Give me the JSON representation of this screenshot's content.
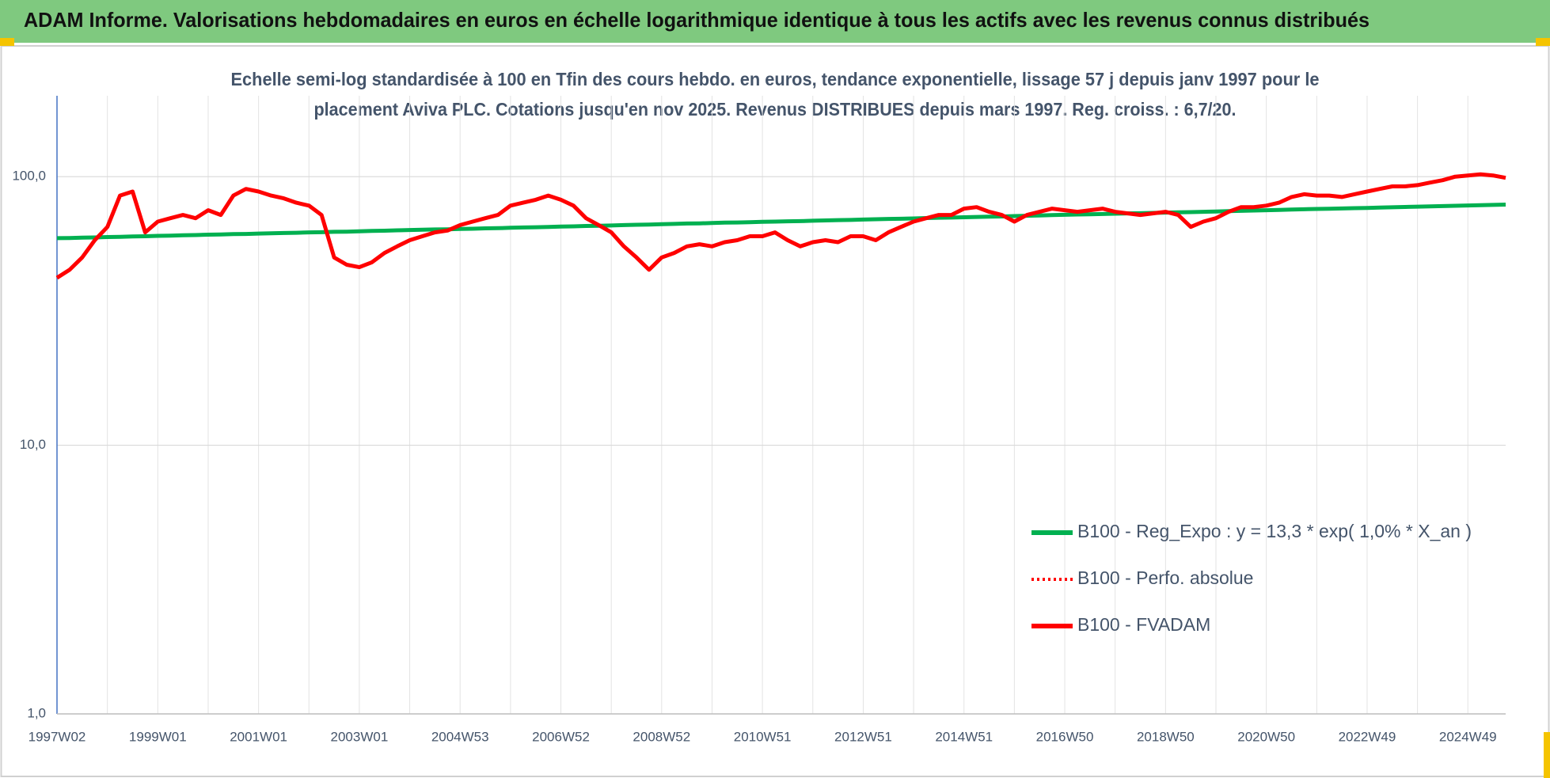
{
  "header": {
    "title": "ADAM Informe. Valorisations hebdomadaires en euros en échelle logarithmique identique à tous les actifs avec les revenus connus distribués"
  },
  "chart_data": {
    "type": "line",
    "subtitle": [
      "Echelle semi-log standardisée à 100 en Tfin des cours hebdo. en euros, tendance exponentielle, lissage 57 j depuis janv 1997 pour le",
      "placement Aviva PLC. Cotations jusqu'en nov 2025.  Revenus DISTRIBUES depuis mars 1997. Reg. croiss. : 6,7/20."
    ],
    "categories": [
      "1997W02",
      null,
      null,
      null,
      null,
      null,
      null,
      null,
      "1999W01",
      null,
      null,
      null,
      null,
      null,
      null,
      null,
      "2001W01",
      null,
      null,
      null,
      null,
      null,
      null,
      null,
      "2003W01",
      null,
      null,
      null,
      null,
      null,
      null,
      null,
      "2004W53",
      null,
      null,
      null,
      null,
      null,
      null,
      null,
      "2006W52",
      null,
      null,
      null,
      null,
      null,
      null,
      null,
      "2008W52",
      null,
      null,
      null,
      null,
      null,
      null,
      null,
      "2010W51",
      null,
      null,
      null,
      null,
      null,
      null,
      null,
      "2012W51",
      null,
      null,
      null,
      null,
      null,
      null,
      null,
      "2014W51",
      null,
      null,
      null,
      null,
      null,
      null,
      null,
      "2016W50",
      null,
      null,
      null,
      null,
      null,
      null,
      null,
      "2018W50",
      null,
      null,
      null,
      null,
      null,
      null,
      null,
      "2020W50",
      null,
      null,
      null,
      null,
      null,
      null,
      null,
      "2022W49",
      null,
      null,
      null,
      null,
      null,
      null,
      null,
      "2024W49",
      null,
      null,
      null
    ],
    "series": [
      {
        "name": "B100 - Reg_Expo : y = 13,3 * exp( 1,0% *  X_an )",
        "color": "#00b050",
        "dash": "solid",
        "values": [
          59.0,
          59.1,
          59.3,
          59.4,
          59.6,
          59.7,
          59.9,
          60.0,
          60.2,
          60.3,
          60.5,
          60.6,
          60.8,
          60.9,
          61.1,
          61.2,
          61.4,
          61.5,
          61.7,
          61.8,
          62.0,
          62.1,
          62.3,
          62.4,
          62.6,
          62.8,
          62.9,
          63.1,
          63.3,
          63.4,
          63.6,
          63.7,
          63.9,
          64.0,
          64.2,
          64.3,
          64.5,
          64.7,
          64.8,
          65.0,
          65.2,
          65.3,
          65.5,
          65.6,
          65.8,
          66.0,
          66.2,
          66.3,
          66.5,
          66.7,
          66.9,
          67.0,
          67.2,
          67.4,
          67.5,
          67.7,
          67.9,
          68.0,
          68.2,
          68.3,
          68.5,
          68.7,
          68.9,
          69.0,
          69.2,
          69.4,
          69.6,
          69.7,
          69.9,
          70.1,
          70.3,
          70.4,
          70.6,
          70.8,
          71.0,
          71.1,
          71.3,
          71.5,
          71.7,
          71.9,
          72.1,
          72.3,
          72.4,
          72.6,
          72.8,
          73.0,
          73.1,
          73.3,
          73.5,
          73.7,
          73.8,
          74.0,
          74.2,
          74.4,
          74.6,
          74.8,
          75.0,
          75.2,
          75.4,
          75.6,
          75.8,
          75.9,
          76.1,
          76.3,
          76.5,
          76.7,
          76.9,
          77.1,
          77.3,
          77.5,
          77.7,
          77.9,
          78.1,
          78.3,
          78.5,
          78.7
        ]
      },
      {
        "name": "B100 - Perfo. absolue",
        "color": "#ff0000",
        "dash": "dotted",
        "values": [
          42,
          45,
          50,
          58,
          65,
          85,
          88,
          62,
          68,
          70,
          72,
          70,
          75,
          72,
          85,
          90,
          88,
          85,
          83,
          80,
          78,
          72,
          50,
          47,
          46,
          48,
          52,
          55,
          58,
          60,
          62,
          63,
          66,
          68,
          70,
          72,
          78,
          80,
          82,
          85,
          82,
          78,
          70,
          66,
          62,
          55,
          50,
          45,
          50,
          52,
          55,
          56,
          55,
          57,
          58,
          60,
          60,
          62,
          58,
          55,
          57,
          58,
          57,
          60,
          60,
          58,
          62,
          65,
          68,
          70,
          72,
          72,
          76,
          77,
          74,
          72,
          68,
          72,
          74,
          76,
          75,
          74,
          75,
          76,
          74,
          73,
          72,
          73,
          74,
          72,
          65,
          68,
          70,
          74,
          77,
          77,
          78,
          80,
          84,
          86,
          85,
          85,
          84,
          86,
          88,
          90,
          92,
          92,
          93,
          95,
          97,
          100,
          101,
          102,
          101,
          99
        ]
      },
      {
        "name": "B100 - FVADAM",
        "color": "#ff0000",
        "dash": "solid",
        "values": [
          42,
          45,
          50,
          58,
          65,
          85,
          88,
          62,
          68,
          70,
          72,
          70,
          75,
          72,
          85,
          90,
          88,
          85,
          83,
          80,
          78,
          72,
          50,
          47,
          46,
          48,
          52,
          55,
          58,
          60,
          62,
          63,
          66,
          68,
          70,
          72,
          78,
          80,
          82,
          85,
          82,
          78,
          70,
          66,
          62,
          55,
          50,
          45,
          50,
          52,
          55,
          56,
          55,
          57,
          58,
          60,
          60,
          62,
          58,
          55,
          57,
          58,
          57,
          60,
          60,
          58,
          62,
          65,
          68,
          70,
          72,
          72,
          76,
          77,
          74,
          72,
          68,
          72,
          74,
          76,
          75,
          74,
          75,
          76,
          74,
          73,
          72,
          73,
          74,
          72,
          65,
          68,
          70,
          74,
          77,
          77,
          78,
          80,
          84,
          86,
          85,
          85,
          84,
          86,
          88,
          90,
          92,
          92,
          93,
          95,
          97,
          100,
          101,
          102,
          101,
          99
        ]
      }
    ],
    "ylim": [
      1,
      200
    ],
    "log_scale": true,
    "yticks": [
      {
        "value": 1,
        "label": "1,0"
      },
      {
        "value": 10,
        "label": "10,0"
      },
      {
        "value": 100,
        "label": "100,0"
      }
    ],
    "grid": true,
    "legend": "lower right"
  }
}
